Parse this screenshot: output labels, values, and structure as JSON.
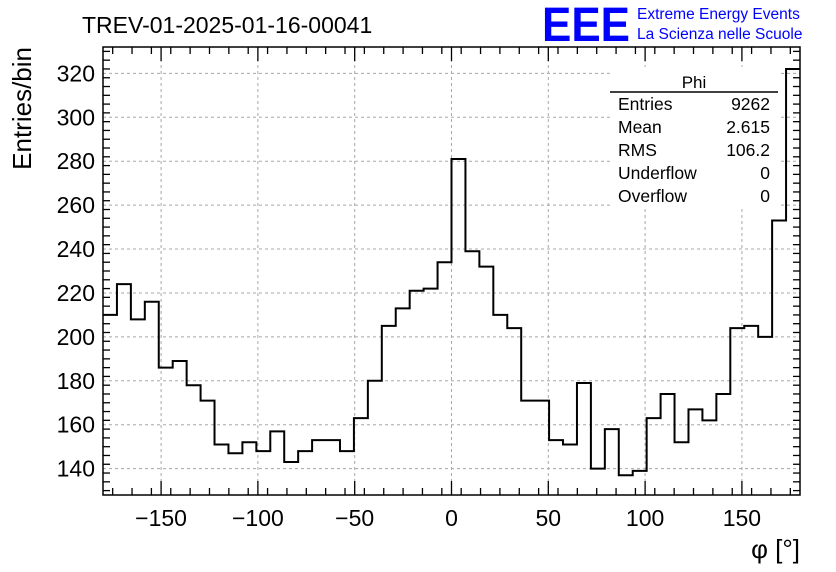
{
  "chart_data": {
    "type": "histogram",
    "title": "TREV-01-2025-01-16-00041",
    "xlabel": "φ [°]",
    "ylabel": "Entries/bin",
    "xlim": [
      -180,
      180
    ],
    "ylim": [
      128,
      332
    ],
    "grid": true,
    "bin_width": 7.2,
    "xticks": [
      "−150",
      "−100",
      "−50",
      "0",
      "50",
      "100",
      "150"
    ],
    "xtick_values": [
      -150,
      -100,
      -50,
      0,
      50,
      100,
      150
    ],
    "yticks": [
      "140",
      "160",
      "180",
      "200",
      "220",
      "240",
      "260",
      "280",
      "300",
      "320"
    ],
    "ytick_values": [
      140,
      160,
      180,
      200,
      220,
      240,
      260,
      280,
      300,
      320
    ],
    "values": [
      210,
      224,
      208,
      216,
      186,
      189,
      178,
      171,
      151,
      147,
      152,
      148,
      157,
      143,
      148,
      153,
      153,
      148,
      163,
      180,
      205,
      213,
      221,
      222,
      234,
      281,
      239,
      232,
      210,
      204,
      171,
      171,
      153,
      151,
      179,
      140,
      158,
      137,
      139,
      163,
      174,
      152,
      167,
      162,
      174,
      204,
      205,
      200,
      253,
      322
    ],
    "color": "#000000"
  },
  "stats": {
    "name": "Phi",
    "rows": [
      {
        "label": "Entries",
        "value": "9262"
      },
      {
        "label": "Mean",
        "value": "2.615"
      },
      {
        "label": "RMS",
        "value": "106.2"
      },
      {
        "label": "Underflow",
        "value": "0"
      },
      {
        "label": "Overflow",
        "value": "0"
      }
    ]
  },
  "logo": {
    "mark": "EEE",
    "line1": "Extreme Energy Events",
    "line2": "La Scienza nelle Scuole",
    "color": "#0000ff"
  }
}
